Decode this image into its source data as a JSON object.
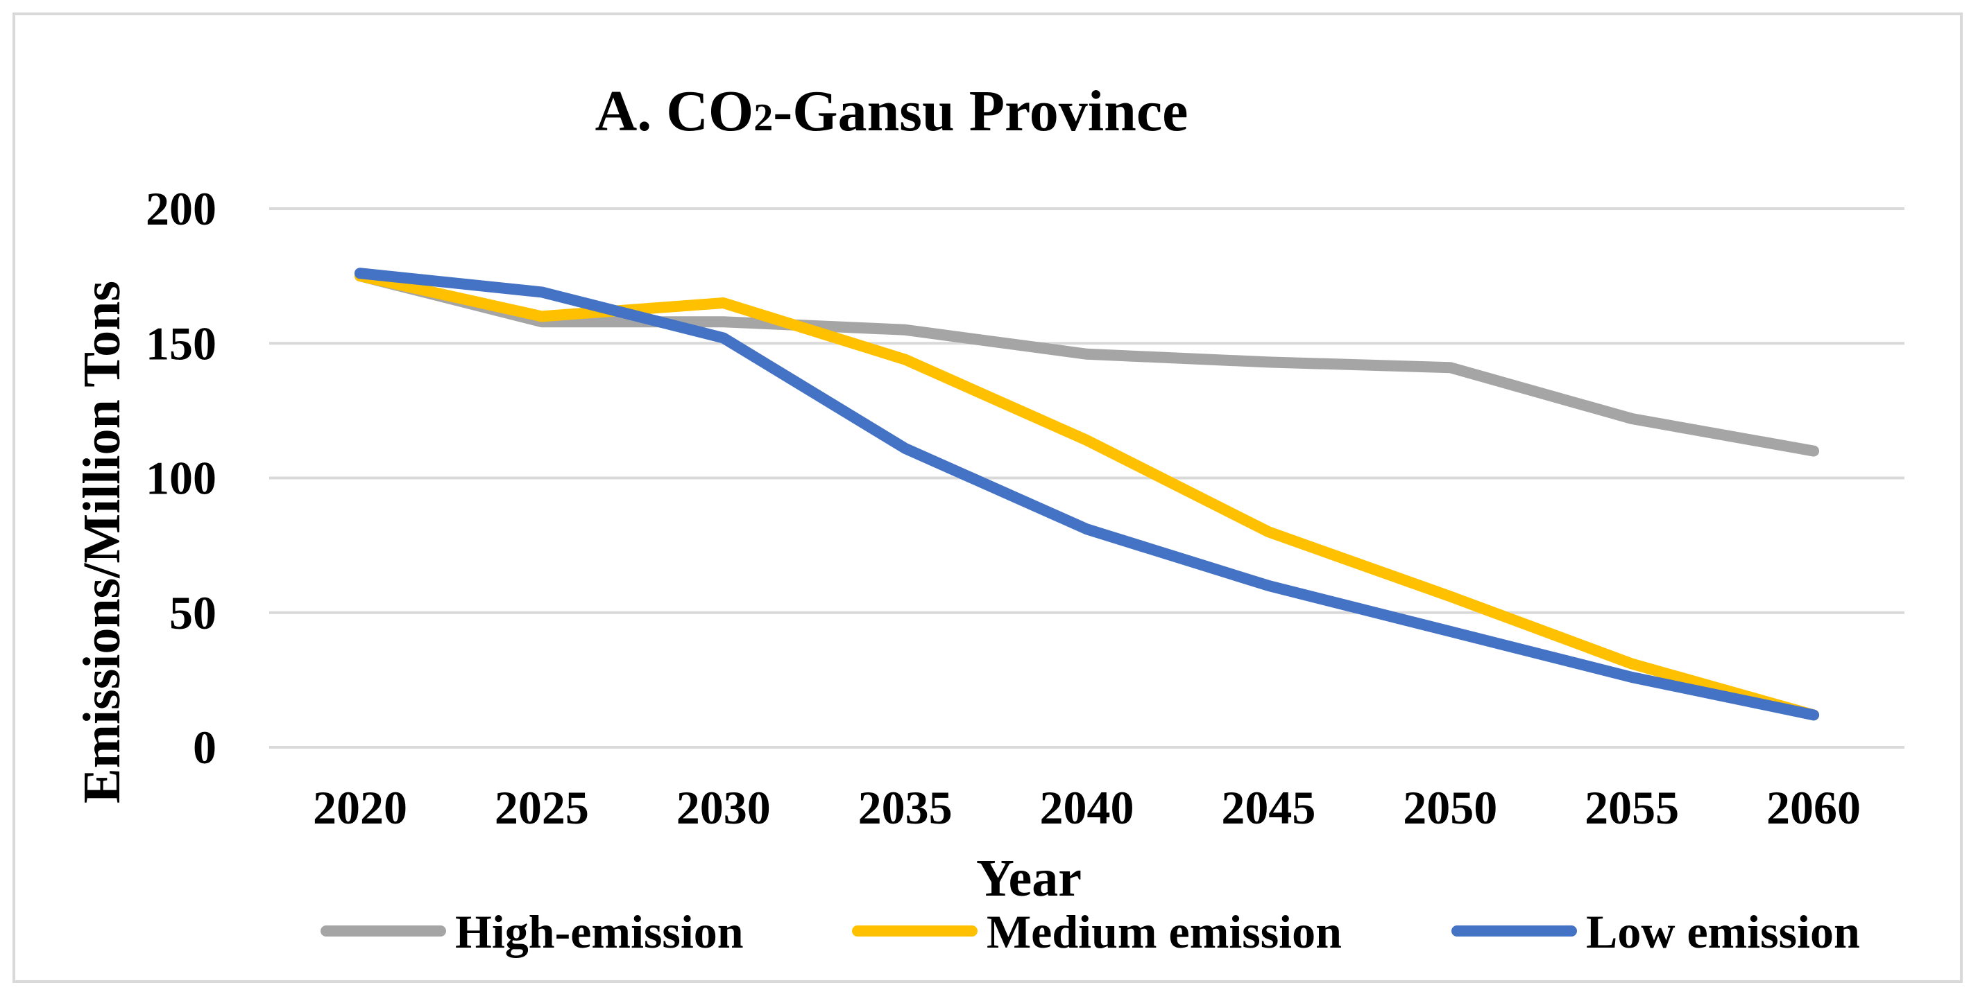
{
  "chart_data": {
    "type": "line",
    "title_main": "A. CO",
    "title_sub": "2",
    "title_rest": "-Gansu Province",
    "xlabel": "Year",
    "ylabel": "Emissions/Million Tons",
    "categories": [
      "2020",
      "2025",
      "2030",
      "2035",
      "2040",
      "2045",
      "2050",
      "2055",
      "2060"
    ],
    "yticks": [
      "0",
      "50",
      "100",
      "150",
      "200"
    ],
    "ylim": [
      0,
      200
    ],
    "grid": true,
    "legend_position": "bottom",
    "series": [
      {
        "name": "High-emission",
        "color": "#a5a5a5",
        "values": [
          175,
          158,
          158,
          155,
          146,
          143,
          141,
          122,
          110
        ]
      },
      {
        "name": "Medium emission",
        "color": "#ffc000",
        "values": [
          175,
          160,
          165,
          144,
          114,
          80,
          56,
          31,
          12
        ]
      },
      {
        "name": "Low emission",
        "color": "#4472c4",
        "values": [
          176,
          169,
          152,
          111,
          81,
          60,
          43,
          26,
          12
        ]
      }
    ]
  }
}
